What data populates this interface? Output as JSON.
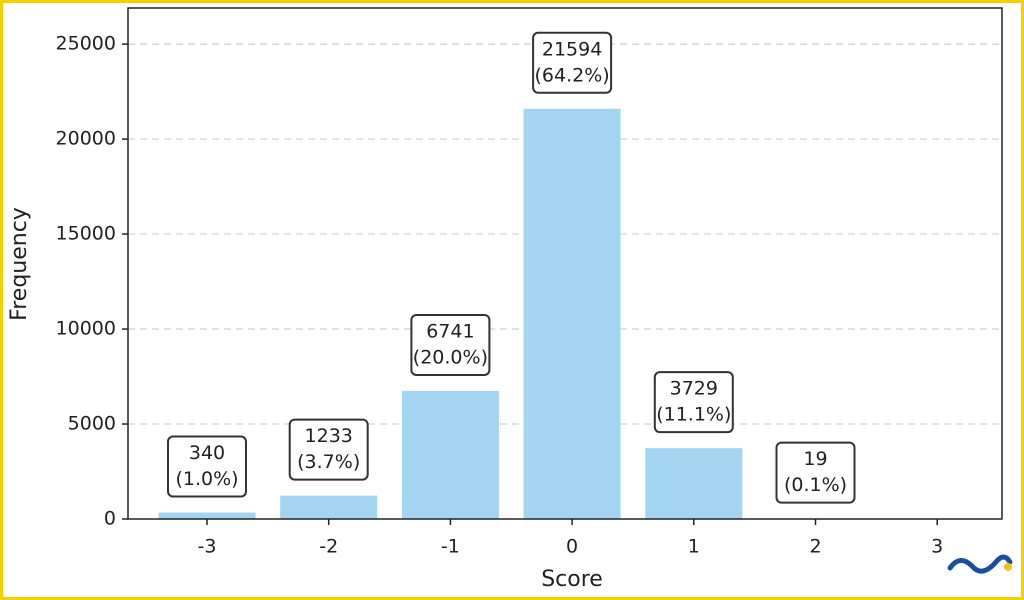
{
  "chart_data": {
    "type": "bar",
    "x_label": "Score",
    "y_label": "Frequency",
    "categories": [
      "-3",
      "-2",
      "-1",
      "0",
      "1",
      "2",
      "3"
    ],
    "values": [
      340,
      1233,
      6741,
      21594,
      3729,
      19,
      null
    ],
    "percent_labels": [
      "(1.0%)",
      "(3.7%)",
      "(20.0%)",
      "(64.2%)",
      "(11.1%)",
      "(0.1%)",
      null
    ],
    "color": "#a3d5f0",
    "ylim": [
      0,
      26900
    ],
    "yticks": [
      0,
      5000,
      10000,
      15000,
      20000,
      25000
    ],
    "grid": true
  }
}
